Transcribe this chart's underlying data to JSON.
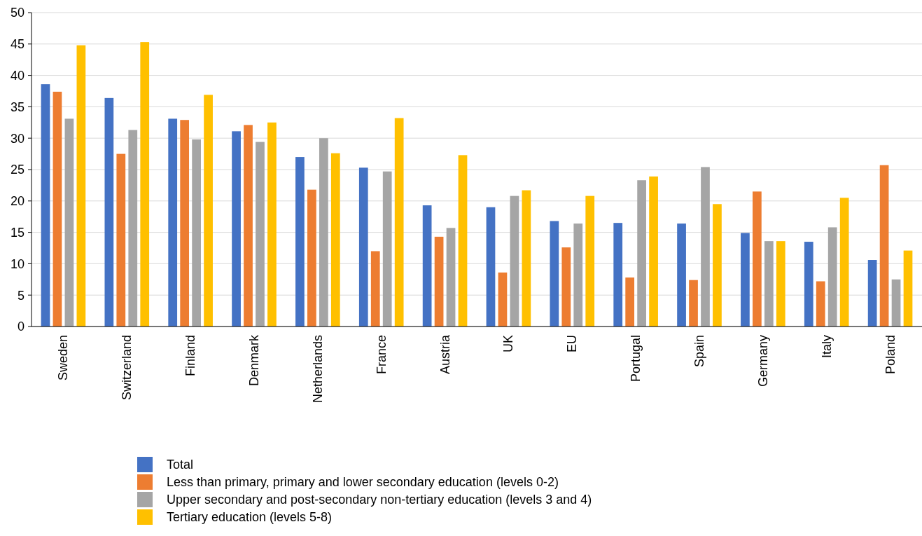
{
  "chart_data": {
    "type": "bar",
    "categories": [
      "Sweden",
      "Switzerland",
      "Finland",
      "Denmark",
      "Netherlands",
      "France",
      "Austria",
      "UK",
      "EU",
      "Portugal",
      "Spain",
      "Germany",
      "Italy",
      "Poland"
    ],
    "series": [
      {
        "name": "Total",
        "color": "#4472c4",
        "values": [
          38.6,
          36.4,
          33.1,
          31.1,
          27.0,
          25.3,
          19.3,
          19.0,
          16.8,
          16.5,
          16.4,
          14.9,
          13.5,
          10.6
        ]
      },
      {
        "name": "Less than primary, primary and lower secondary education (levels 0-2)",
        "color": "#ed7d31",
        "values": [
          37.4,
          27.5,
          32.9,
          32.1,
          21.8,
          12.0,
          14.3,
          8.6,
          12.6,
          7.8,
          7.4,
          21.5,
          7.2,
          25.7
        ]
      },
      {
        "name": "Upper secondary and post-secondary non-tertiary education (levels 3 and 4)",
        "color": "#a5a5a5",
        "values": [
          33.1,
          31.3,
          29.8,
          29.4,
          30.0,
          24.7,
          15.7,
          20.8,
          16.4,
          23.3,
          25.4,
          13.6,
          15.8,
          7.5
        ]
      },
      {
        "name": "Tertiary education (levels 5-8)",
        "color": "#ffc000",
        "values": [
          44.8,
          45.3,
          36.9,
          32.5,
          27.6,
          33.2,
          27.3,
          21.7,
          20.8,
          23.9,
          19.5,
          13.6,
          20.5,
          12.1
        ]
      }
    ],
    "ylim": [
      0,
      50
    ],
    "yticks": [
      0,
      5,
      10,
      15,
      20,
      25,
      30,
      35,
      40,
      45,
      50
    ],
    "grid": "y",
    "legend": "bottom"
  }
}
